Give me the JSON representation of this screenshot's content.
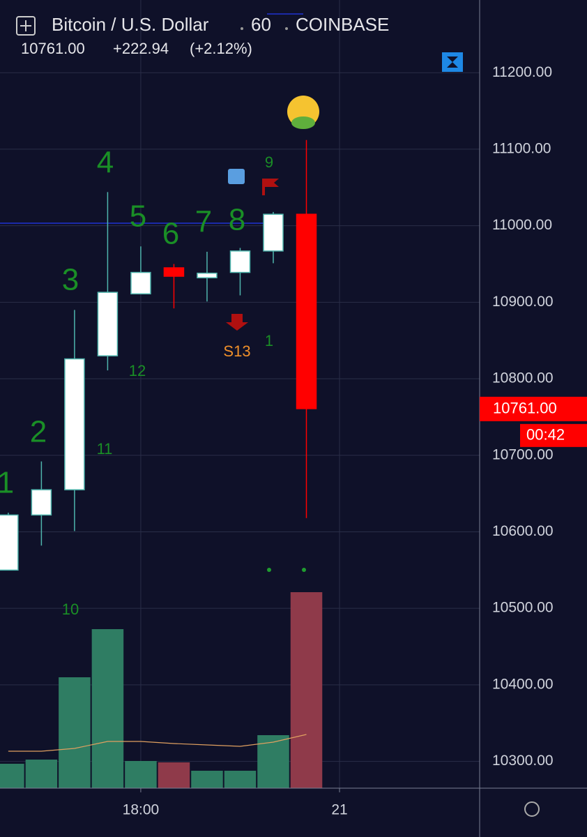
{
  "header": {
    "symbol": "Bitcoin / U.S. Dollar",
    "interval": "60",
    "exchange": "COINBASE",
    "price": "10761.00",
    "change": "+222.94",
    "change_pct": "(+2.12%)"
  },
  "chart_data": {
    "type": "candlestick",
    "x": [
      14,
      15,
      16,
      17,
      18,
      19,
      20,
      21,
      22,
      23
    ],
    "xlim": [
      13.75,
      28.23
    ],
    "xticks": [
      {
        "value": 18,
        "label": "18:00"
      },
      {
        "value": 24,
        "label": "21"
      }
    ],
    "open": [
      10550,
      10622,
      10655,
      10830,
      10911,
      10945,
      10932,
      10939,
      10967,
      11015
    ],
    "high": [
      10625,
      10692,
      10890,
      11044,
      10973,
      10950,
      10966,
      10971,
      11018,
      11112
    ],
    "low": [
      10550,
      10582,
      10601,
      10811,
      10911,
      10892,
      10901,
      10909,
      10951,
      10618
    ],
    "close": [
      10622,
      10655,
      10826,
      10913,
      10939,
      10934,
      10938,
      10967,
      11015,
      10761
    ],
    "up_color": "#ffffff",
    "up_border": "#4fb5ad",
    "down_color": "#ff0000",
    "volume": [
      35,
      41,
      159,
      228,
      39,
      37,
      25,
      25,
      76,
      281
    ],
    "volume_ma": [
      53,
      53,
      57,
      67,
      67,
      64,
      62,
      60,
      66,
      77
    ],
    "volume_up_color": "#2f7d63",
    "volume_down_color": "#8f3a4a",
    "ma_color": "#e0a060",
    "ylim": [
      10265,
      11295
    ],
    "yticks": [
      {
        "value": 10300,
        "label": "10300.00"
      },
      {
        "value": 10400,
        "label": "10400.00"
      },
      {
        "value": 10500,
        "label": "10500.00"
      },
      {
        "value": 10600,
        "label": "10600.00"
      },
      {
        "value": 10700,
        "label": "10700.00"
      },
      {
        "value": 10800,
        "label": "10800.00"
      },
      {
        "value": 10900,
        "label": "10900.00"
      },
      {
        "value": 11000,
        "label": "11000.00"
      },
      {
        "value": 11100,
        "label": "11100.00"
      },
      {
        "value": 11200,
        "label": "11200.00"
      }
    ],
    "grid": true,
    "td_counts": [
      "1",
      "2",
      "3",
      "4",
      "5",
      "6",
      "7",
      "8"
    ],
    "td_small": [
      "9",
      "1",
      "12",
      "11",
      "10"
    ],
    "signal": "S13",
    "last_label": "10761.00",
    "countdown": "00:42"
  }
}
